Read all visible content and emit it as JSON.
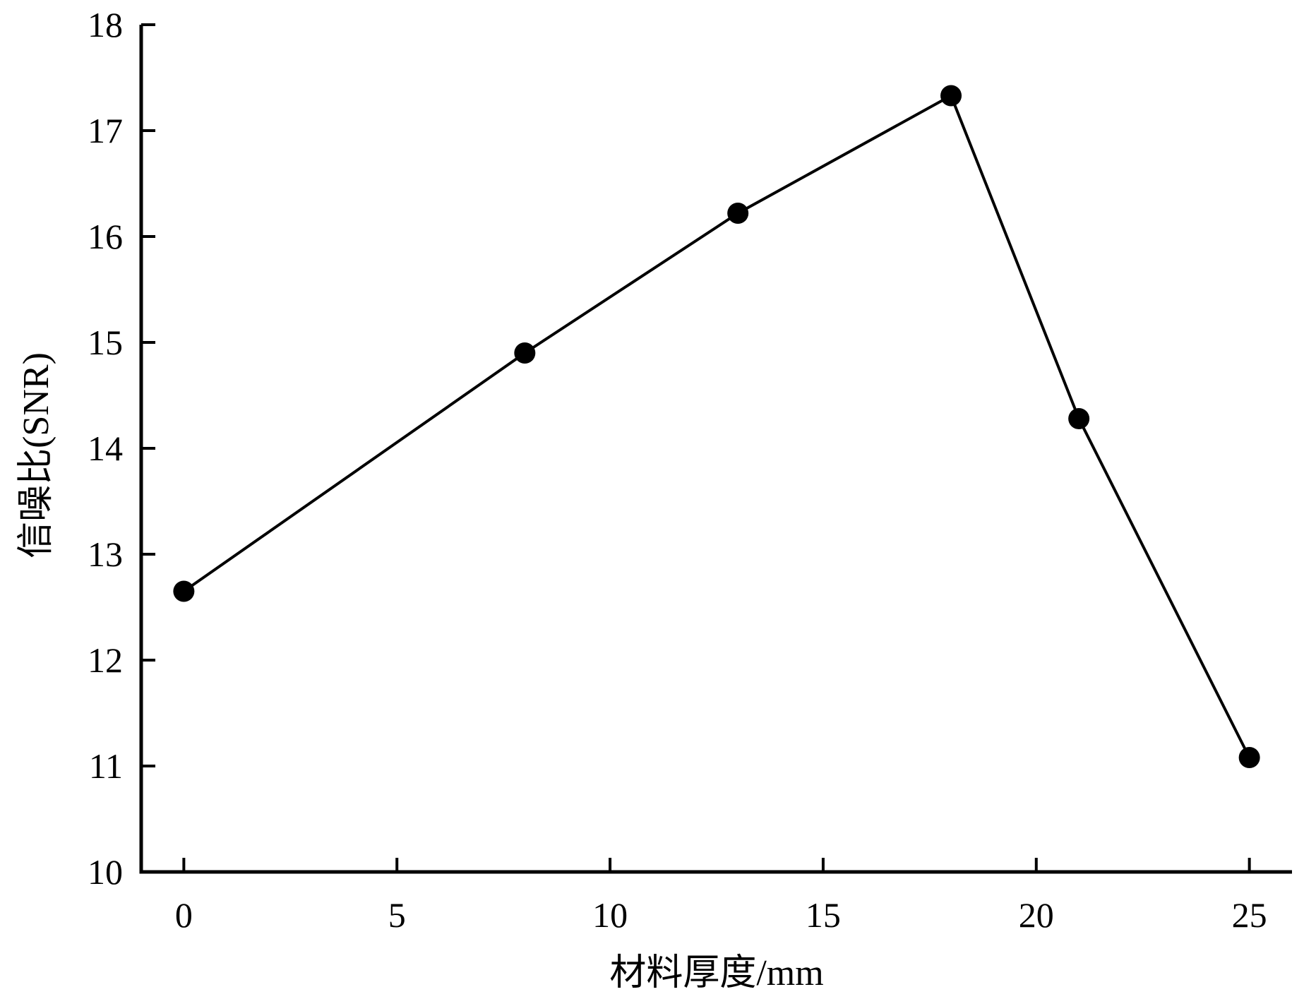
{
  "chart_data": {
    "type": "line",
    "title": "",
    "xlabel": "材料厚度/mm",
    "ylabel": "信噪比(SNR)",
    "xlim": [
      -1,
      26
    ],
    "ylim": [
      10,
      18
    ],
    "x_ticks": [
      0,
      5,
      10,
      15,
      20,
      25
    ],
    "y_ticks": [
      10,
      11,
      12,
      13,
      14,
      15,
      16,
      17,
      18
    ],
    "grid": false,
    "legend": "none",
    "series": [
      {
        "x": [
          0,
          8,
          13,
          18,
          21,
          25
        ],
        "y": [
          12.65,
          14.9,
          16.22,
          17.33,
          14.28,
          11.08
        ],
        "color": "#000000",
        "marker": "filled-circle"
      }
    ]
  }
}
